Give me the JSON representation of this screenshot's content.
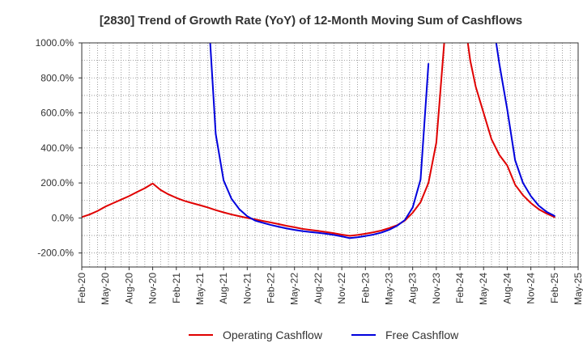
{
  "chart_data": {
    "type": "line",
    "title": "[2830]  Trend of Growth Rate (YoY) of 12-Month Moving Sum of Cashflows",
    "xlabel": "",
    "ylabel": "",
    "ylim": [
      -280,
      1000
    ],
    "y_ticks": [
      {
        "value": 1000,
        "label": "1000.0%"
      },
      {
        "value": 800,
        "label": "800.0%"
      },
      {
        "value": 600,
        "label": "600.0%"
      },
      {
        "value": 400,
        "label": "400.0%"
      },
      {
        "value": 200,
        "label": "200.0%"
      },
      {
        "value": 0,
        "label": "0.0%"
      },
      {
        "value": -200,
        "label": "-200.0%"
      }
    ],
    "x_ticks": [
      "Feb-20",
      "May-20",
      "Aug-20",
      "Nov-20",
      "Feb-21",
      "May-21",
      "Aug-21",
      "Nov-21",
      "Feb-22",
      "May-22",
      "Aug-22",
      "Nov-22",
      "Feb-23",
      "May-23",
      "Aug-23",
      "Nov-23",
      "Feb-24",
      "May-24",
      "Aug-24",
      "Nov-24",
      "Feb-25",
      "May-25"
    ],
    "grid": true,
    "legend_position": "bottom",
    "series": [
      {
        "name": "Operating Cashflow",
        "color": "#e00000",
        "values": [
          [
            0,
            5
          ],
          [
            1,
            20
          ],
          [
            2,
            40
          ],
          [
            3,
            65
          ],
          [
            4,
            85
          ],
          [
            5,
            105
          ],
          [
            6,
            125
          ],
          [
            7,
            148
          ],
          [
            8,
            170
          ],
          [
            9,
            197
          ],
          [
            10,
            160
          ],
          [
            11,
            135
          ],
          [
            12,
            115
          ],
          [
            13,
            98
          ],
          [
            14,
            85
          ],
          [
            15,
            73
          ],
          [
            16,
            60
          ],
          [
            17,
            45
          ],
          [
            18,
            32
          ],
          [
            19,
            20
          ],
          [
            20,
            10
          ],
          [
            21,
            0
          ],
          [
            22,
            -8
          ],
          [
            23,
            -17
          ],
          [
            24,
            -26
          ],
          [
            25,
            -35
          ],
          [
            26,
            -45
          ],
          [
            27,
            -53
          ],
          [
            28,
            -62
          ],
          [
            29,
            -68
          ],
          [
            30,
            -74
          ],
          [
            31,
            -80
          ],
          [
            32,
            -87
          ],
          [
            33,
            -95
          ],
          [
            34,
            -102
          ],
          [
            35,
            -97
          ],
          [
            36,
            -90
          ],
          [
            37,
            -82
          ],
          [
            38,
            -72
          ],
          [
            39,
            -58
          ],
          [
            40,
            -42
          ],
          [
            41,
            -15
          ],
          [
            42,
            30
          ],
          [
            43,
            90
          ],
          [
            44,
            200
          ],
          [
            45,
            430
          ],
          [
            46,
            1000
          ],
          [
            46.3,
            1300
          ],
          [
            48.7,
            1300
          ],
          [
            49,
            1000
          ],
          [
            49.3,
            900
          ],
          [
            50,
            750
          ],
          [
            51,
            600
          ],
          [
            52,
            450
          ],
          [
            53,
            360
          ],
          [
            54,
            300
          ],
          [
            55,
            190
          ],
          [
            56,
            130
          ],
          [
            57,
            85
          ],
          [
            58,
            50
          ],
          [
            59,
            25
          ],
          [
            60,
            5
          ]
        ]
      },
      {
        "name": "Free Cashflow",
        "color": "#0000dd",
        "segments": [
          [
            [
              16.3,
              1000
            ],
            [
              17,
              480
            ],
            [
              18,
              215
            ],
            [
              19,
              110
            ],
            [
              20,
              50
            ],
            [
              21,
              10
            ],
            [
              22,
              -15
            ],
            [
              23,
              -28
            ],
            [
              24,
              -40
            ],
            [
              25,
              -50
            ],
            [
              26,
              -60
            ],
            [
              27,
              -68
            ],
            [
              28,
              -75
            ],
            [
              29,
              -80
            ],
            [
              30,
              -85
            ],
            [
              31,
              -90
            ],
            [
              32,
              -97
            ],
            [
              33,
              -105
            ],
            [
              34,
              -115
            ],
            [
              35,
              -110
            ],
            [
              36,
              -103
            ],
            [
              37,
              -95
            ],
            [
              38,
              -84
            ],
            [
              39,
              -68
            ],
            [
              40,
              -45
            ],
            [
              41,
              -12
            ],
            [
              42,
              60
            ],
            [
              43,
              220
            ],
            [
              44,
              880
            ]
          ],
          [
            [
              52.3,
              1300
            ],
            [
              52.6,
              1000
            ],
            [
              53,
              880
            ],
            [
              54,
              620
            ],
            [
              55,
              330
            ],
            [
              56,
              200
            ],
            [
              57,
              125
            ],
            [
              58,
              70
            ],
            [
              59,
              35
            ],
            [
              60,
              12
            ]
          ]
        ]
      }
    ]
  }
}
